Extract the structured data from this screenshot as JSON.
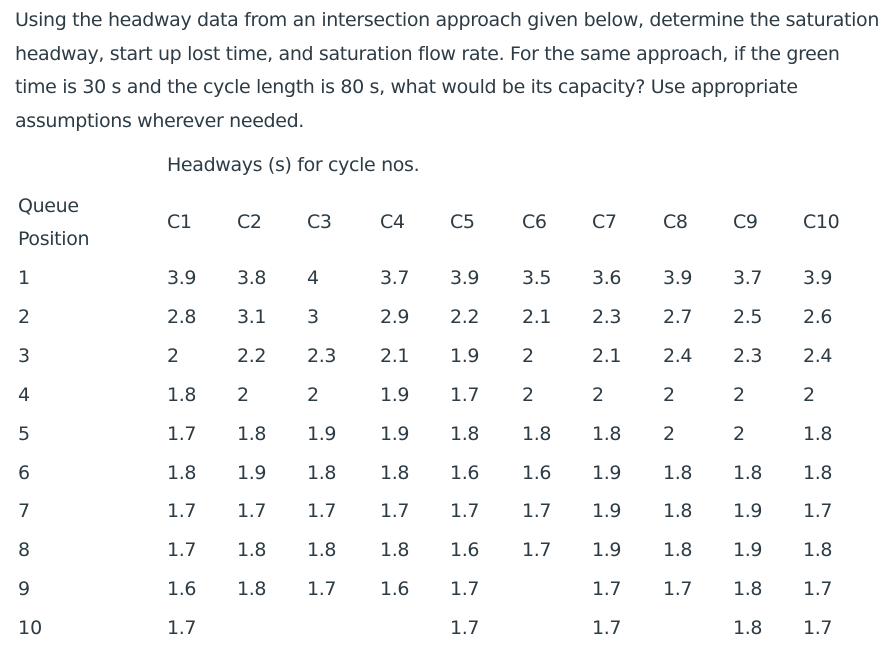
{
  "question": "Using the headway data from an intersection approach given below, determine the saturation headway, start up lost time, and saturation flow rate. For the same approach, if the green time is 30 s and the cycle length is 80 s, what would be its capacity? Use appropriate assumptions wherever needed.",
  "table": {
    "caption": "Headways (s) for cycle nos.",
    "row_header_line1": "Queue",
    "row_header_line2": "Position",
    "columns": [
      "C1",
      "C2",
      "C3",
      "C4",
      "C5",
      "C6",
      "C7",
      "C8",
      "C9",
      "C10"
    ],
    "rows": [
      {
        "position": "1",
        "values": [
          "3.9",
          "3.8",
          "4",
          "3.7",
          "3.9",
          "3.5",
          "3.6",
          "3.9",
          "3.7",
          "3.9"
        ]
      },
      {
        "position": "2",
        "values": [
          "2.8",
          "3.1",
          "3",
          "2.9",
          "2.2",
          "2.1",
          "2.3",
          "2.7",
          "2.5",
          "2.6"
        ]
      },
      {
        "position": "3",
        "values": [
          "2",
          "2.2",
          "2.3",
          "2.1",
          "1.9",
          "2",
          "2.1",
          "2.4",
          "2.3",
          "2.4"
        ]
      },
      {
        "position": "4",
        "values": [
          "1.8",
          "2",
          "2",
          "1.9",
          "1.7",
          "2",
          "2",
          "2",
          "2",
          "2"
        ]
      },
      {
        "position": "5",
        "values": [
          "1.7",
          "1.8",
          "1.9",
          "1.9",
          "1.8",
          "1.8",
          "1.8",
          "2",
          "2",
          "1.8"
        ]
      },
      {
        "position": "6",
        "values": [
          "1.8",
          "1.9",
          "1.8",
          "1.8",
          "1.6",
          "1.6",
          "1.9",
          "1.8",
          "1.8",
          "1.8"
        ]
      },
      {
        "position": "7",
        "values": [
          "1.7",
          "1.7",
          "1.7",
          "1.7",
          "1.7",
          "1.7",
          "1.9",
          "1.8",
          "1.9",
          "1.7"
        ]
      },
      {
        "position": "8",
        "values": [
          "1.7",
          "1.8",
          "1.8",
          "1.8",
          "1.6",
          "1.7",
          "1.9",
          "1.8",
          "1.9",
          "1.8"
        ]
      },
      {
        "position": "9",
        "values": [
          "1.6",
          "1.8",
          "1.7",
          "1.6",
          "1.7",
          "",
          "1.7",
          "1.7",
          "1.8",
          "1.7"
        ]
      },
      {
        "position": "10",
        "values": [
          "1.7",
          "",
          "",
          "",
          "1.7",
          "",
          "1.7",
          "",
          "1.8",
          "1.7"
        ]
      }
    ]
  }
}
